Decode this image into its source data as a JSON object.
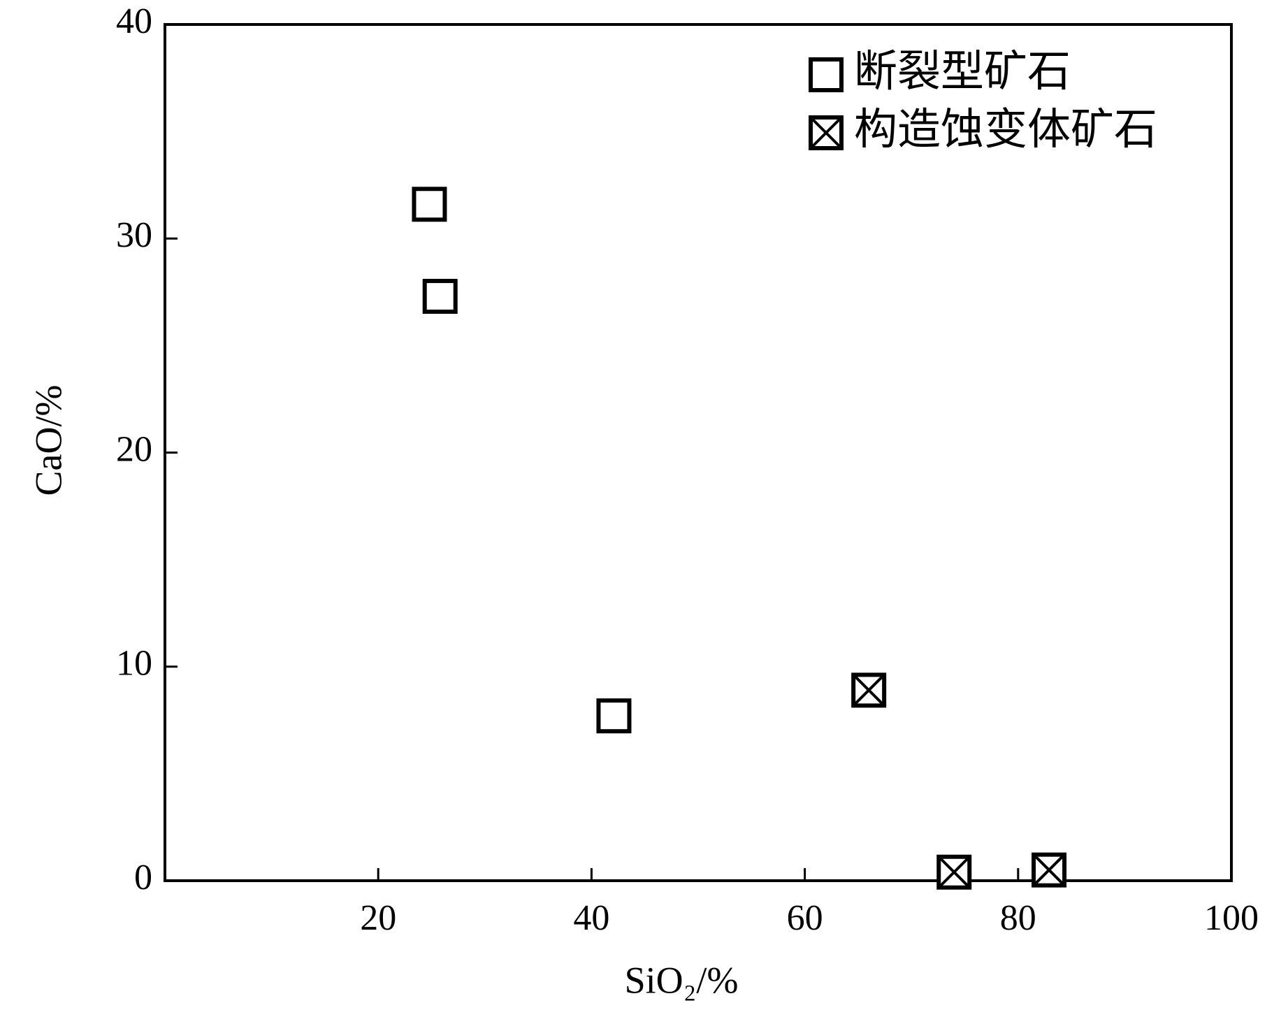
{
  "chart_data": {
    "type": "scatter",
    "x_label": "SiO₂/%",
    "y_label": "CaO/%",
    "xlim": [
      0,
      100
    ],
    "xticks": [
      20,
      40,
      60,
      80,
      100
    ],
    "ylim": [
      0,
      40
    ],
    "yticks": [
      0,
      10,
      20,
      30,
      40
    ],
    "legend": "upper right",
    "series": [
      {
        "name": "断裂型矿石",
        "color": "#000000",
        "marker": "square",
        "x": [
          24.8,
          25.8,
          42.1
        ],
        "values": [
          31.6,
          27.3,
          7.7
        ]
      },
      {
        "name": "构造蚀变体矿石",
        "color": "#000000",
        "marker": "square-x",
        "x": [
          66.0,
          74.0,
          82.9
        ],
        "values": [
          8.9,
          0.4,
          0.5
        ]
      }
    ]
  }
}
